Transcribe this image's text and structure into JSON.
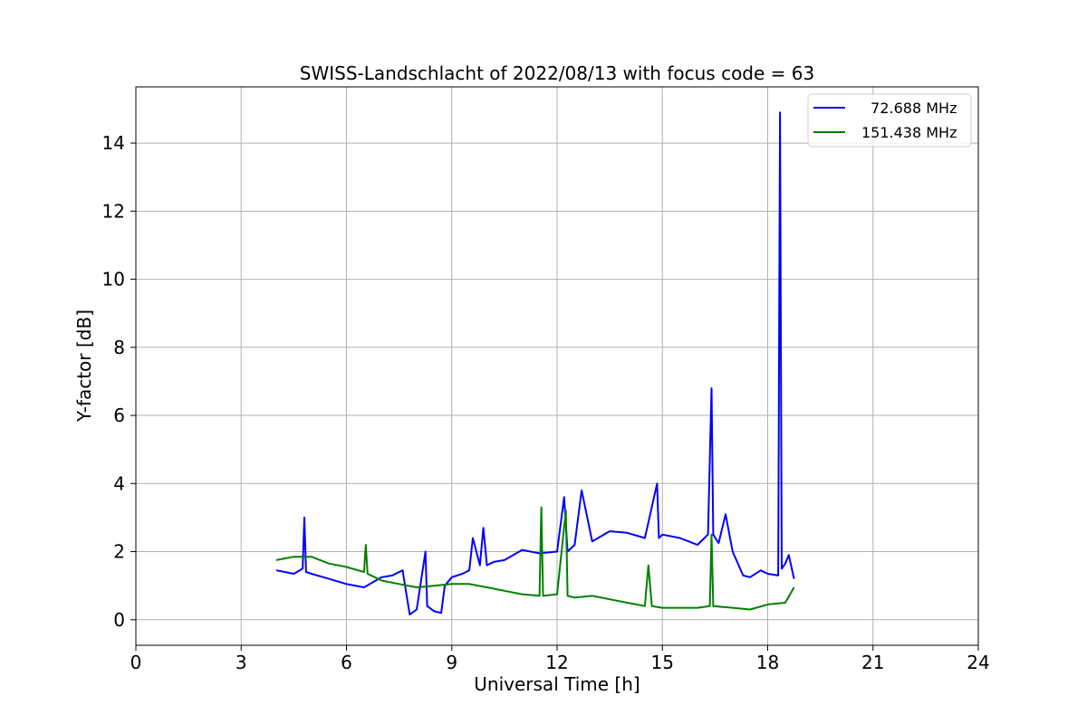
{
  "chart_data": {
    "type": "line",
    "title": "SWISS-Landschlacht of 2022/08/13 with focus code = 63",
    "xlabel": "Universal Time [h]",
    "ylabel": "Y-factor [dB]",
    "xlim": [
      0,
      24
    ],
    "ylim": [
      -0.75,
      15.65
    ],
    "xticks": [
      0,
      3,
      6,
      9,
      12,
      15,
      18,
      21,
      24
    ],
    "yticks": [
      0,
      2,
      4,
      6,
      8,
      10,
      12,
      14
    ],
    "grid": true,
    "legend_position": "top-right",
    "series": [
      {
        "name": "  72.688 MHz",
        "color": "#0000ff",
        "x": [
          4.0,
          4.5,
          4.75,
          4.8,
          4.85,
          5.0,
          5.5,
          6.0,
          6.5,
          7.0,
          7.3,
          7.6,
          7.8,
          8.0,
          8.25,
          8.3,
          8.5,
          8.7,
          8.8,
          9.0,
          9.3,
          9.5,
          9.6,
          9.8,
          9.9,
          10.0,
          10.2,
          10.5,
          11.0,
          11.5,
          12.0,
          12.2,
          12.3,
          12.5,
          12.7,
          13.0,
          13.5,
          14.0,
          14.5,
          14.85,
          14.9,
          15.0,
          15.5,
          16.0,
          16.3,
          16.4,
          16.45,
          16.6,
          16.8,
          17.0,
          17.3,
          17.5,
          17.8,
          18.0,
          18.3,
          18.35,
          18.4,
          18.5,
          18.6,
          18.75
        ],
        "values": [
          1.45,
          1.35,
          1.5,
          3.0,
          1.4,
          1.35,
          1.2,
          1.05,
          0.95,
          1.25,
          1.3,
          1.45,
          0.15,
          0.3,
          2.0,
          0.4,
          0.25,
          0.2,
          1.0,
          1.25,
          1.35,
          1.45,
          2.4,
          1.6,
          2.7,
          1.6,
          1.7,
          1.75,
          2.05,
          1.95,
          2.0,
          3.6,
          2.0,
          2.2,
          3.8,
          2.3,
          2.6,
          2.55,
          2.4,
          4.0,
          2.4,
          2.5,
          2.4,
          2.2,
          2.5,
          6.8,
          2.5,
          2.25,
          3.1,
          2.0,
          1.3,
          1.25,
          1.45,
          1.35,
          1.3,
          14.9,
          1.5,
          1.65,
          1.9,
          1.2
        ]
      },
      {
        "name": "151.438 MHz",
        "color": "#008000",
        "x": [
          4.0,
          4.5,
          5.0,
          5.5,
          6.0,
          6.5,
          6.55,
          6.6,
          7.0,
          7.5,
          8.0,
          8.5,
          9.0,
          9.5,
          10.0,
          10.5,
          11.0,
          11.5,
          11.55,
          11.6,
          12.0,
          12.25,
          12.3,
          12.5,
          13.0,
          13.5,
          14.0,
          14.5,
          14.6,
          14.7,
          15.0,
          15.5,
          16.0,
          16.35,
          16.4,
          16.45,
          17.0,
          17.5,
          18.0,
          18.5,
          18.75
        ],
        "values": [
          1.75,
          1.85,
          1.85,
          1.65,
          1.55,
          1.4,
          2.2,
          1.35,
          1.15,
          1.05,
          0.95,
          1.0,
          1.05,
          1.05,
          0.95,
          0.85,
          0.75,
          0.7,
          3.3,
          0.7,
          0.75,
          3.2,
          0.7,
          0.65,
          0.7,
          0.6,
          0.5,
          0.4,
          1.6,
          0.4,
          0.35,
          0.35,
          0.35,
          0.4,
          2.5,
          0.4,
          0.35,
          0.3,
          0.45,
          0.5,
          0.95
        ]
      }
    ]
  }
}
